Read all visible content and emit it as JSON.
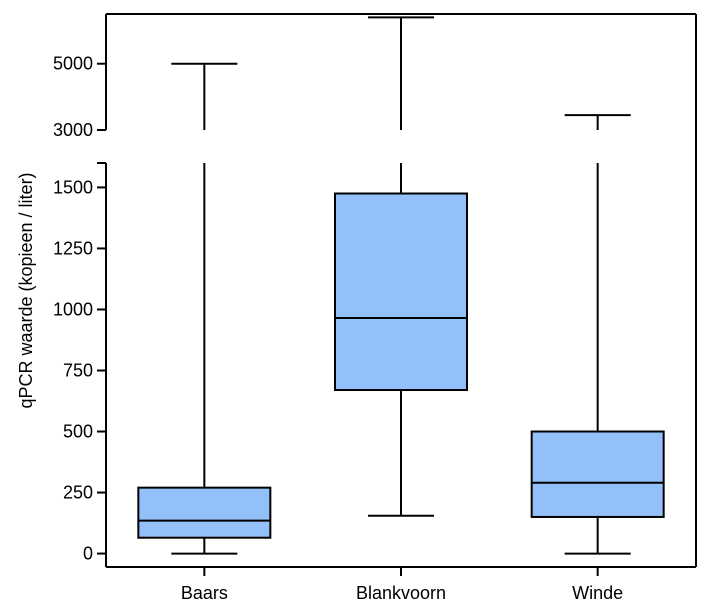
{
  "chart_data": {
    "type": "boxplot",
    "ylabel": "qPCR waarde (kopieen / liter)",
    "xlabel": "",
    "title": "",
    "axis_break": {
      "lower": 1600,
      "upper": 3000
    },
    "yticks_lower": [
      {
        "value": 0,
        "label": "0"
      },
      {
        "value": 250,
        "label": "250"
      },
      {
        "value": 500,
        "label": "500"
      },
      {
        "value": 750,
        "label": "750"
      },
      {
        "value": 1000,
        "label": "1000"
      },
      {
        "value": 1250,
        "label": "1250"
      },
      {
        "value": 1500,
        "label": "1500"
      }
    ],
    "yticks_upper": [
      {
        "value": 3000,
        "label": "3000"
      },
      {
        "value": 5000,
        "label": "5000"
      }
    ],
    "ylim_lower": [
      -55,
      1600
    ],
    "ylim_upper": [
      3000,
      6500
    ],
    "box_color": "#93c0f8",
    "categories": [
      "Baars",
      "Blankvoorn",
      "Winde"
    ],
    "boxes": [
      {
        "name": "Baars",
        "min": 0,
        "q1": 65,
        "median": 135,
        "q3": 270,
        "max": 5000
      },
      {
        "name": "Blankvoorn",
        "min": 155,
        "q1": 670,
        "median": 965,
        "q3": 1475,
        "max": 6400
      },
      {
        "name": "Winde",
        "min": 0,
        "q1": 150,
        "median": 290,
        "q3": 500,
        "max": 3450
      }
    ]
  }
}
